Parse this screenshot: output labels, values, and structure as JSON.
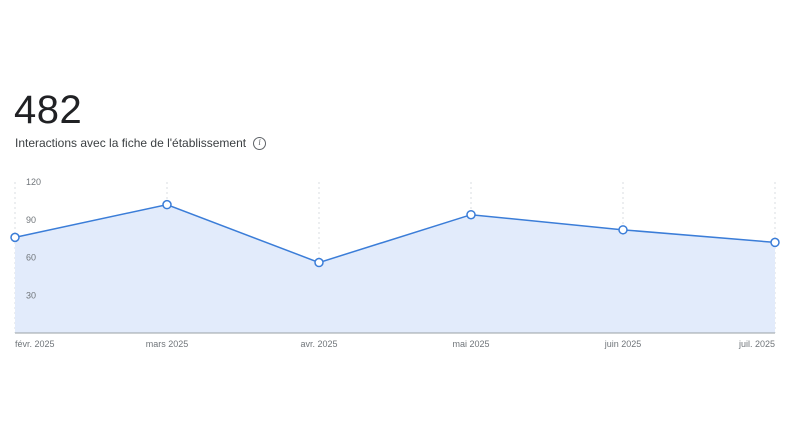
{
  "header": {
    "total_value": "482",
    "metric_label": "Interactions avec la fiche de l'établissement",
    "info_icon": "info-icon"
  },
  "colors": {
    "line": "#3b7dd8",
    "area": "#e2ebfb",
    "grid": "#dadce0",
    "axis": "#9aa0a6",
    "point_fill": "#ffffff"
  },
  "chart_data": {
    "type": "area",
    "title": "",
    "xlabel": "",
    "ylabel": "",
    "ylim": [
      0,
      120
    ],
    "yticks": [
      30,
      60,
      90,
      120
    ],
    "categories": [
      "févr. 2025",
      "mars 2025",
      "avr. 2025",
      "mai 2025",
      "juin 2025",
      "juil. 2025"
    ],
    "series": [
      {
        "values": [
          76,
          102,
          56,
          94,
          82,
          72
        ]
      }
    ],
    "grid": {
      "vertical": true,
      "horizontal": false,
      "style": "dashed"
    }
  }
}
